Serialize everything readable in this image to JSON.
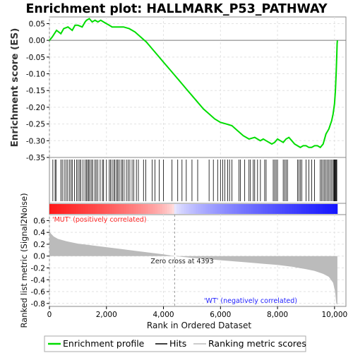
{
  "chart_data": {
    "type": "line",
    "title": "Enrichment plot: HALLMARK_P53_PATHWAY",
    "es_panel": {
      "ylabel": "Enrichment score (ES)",
      "ylim": [
        -0.35,
        0.07
      ],
      "yticks": [
        0.05,
        0.0,
        -0.05,
        -0.1,
        -0.15,
        -0.2,
        -0.25,
        -0.3,
        -0.35
      ],
      "ytick_labels": [
        "0.05",
        "0.00",
        "-0.05",
        "-0.10",
        "-0.15",
        "-0.20",
        "-0.25",
        "-0.30",
        "-0.35"
      ],
      "line_color": "#00dd00",
      "x": [
        0,
        100,
        250,
        400,
        500,
        650,
        800,
        900,
        1000,
        1150,
        1250,
        1300,
        1400,
        1500,
        1600,
        1700,
        1800,
        1900,
        2000,
        2100,
        2200,
        2300,
        2400,
        2600,
        2800,
        3000,
        3200,
        3400,
        3600,
        3800,
        4000,
        4200,
        4400,
        4600,
        4800,
        5000,
        5200,
        5400,
        5600,
        5800,
        6000,
        6200,
        6400,
        6600,
        6800,
        7000,
        7200,
        7400,
        7500,
        7600,
        7800,
        7900,
        8000,
        8100,
        8200,
        8300,
        8400,
        8500,
        8600,
        8700,
        8800,
        8900,
        9000,
        9100,
        9200,
        9300,
        9400,
        9500,
        9600,
        9700,
        9800,
        9900,
        9950,
        10000,
        10030,
        10060,
        10080,
        10090,
        10100
      ],
      "y": [
        0.0,
        0.01,
        0.03,
        0.02,
        0.035,
        0.04,
        0.03,
        0.045,
        0.045,
        0.04,
        0.055,
        0.06,
        0.065,
        0.055,
        0.06,
        0.055,
        0.06,
        0.055,
        0.05,
        0.045,
        0.04,
        0.04,
        0.04,
        0.04,
        0.035,
        0.025,
        0.01,
        -0.005,
        -0.025,
        -0.045,
        -0.065,
        -0.085,
        -0.105,
        -0.125,
        -0.145,
        -0.165,
        -0.185,
        -0.205,
        -0.22,
        -0.235,
        -0.245,
        -0.25,
        -0.255,
        -0.27,
        -0.285,
        -0.295,
        -0.29,
        -0.3,
        -0.295,
        -0.3,
        -0.31,
        -0.305,
        -0.295,
        -0.3,
        -0.305,
        -0.295,
        -0.29,
        -0.3,
        -0.31,
        -0.315,
        -0.32,
        -0.315,
        -0.315,
        -0.32,
        -0.32,
        -0.315,
        -0.315,
        -0.32,
        -0.31,
        -0.28,
        -0.265,
        -0.24,
        -0.22,
        -0.19,
        -0.15,
        -0.09,
        -0.04,
        -0.01,
        0.0
      ]
    },
    "hits": [
      120,
      200,
      230,
      400,
      450,
      520,
      580,
      640,
      700,
      760,
      800,
      880,
      950,
      1000,
      1060,
      1100,
      1180,
      1250,
      1300,
      1340,
      1380,
      1420,
      1480,
      1520,
      1600,
      1640,
      1700,
      1780,
      1860,
      1900,
      2000,
      2100,
      2140,
      2200,
      2260,
      2300,
      2360,
      2400,
      2450,
      2520,
      2560,
      2620,
      2700,
      2760,
      2820,
      2900,
      2960,
      3050,
      3120,
      3300,
      3380,
      3600,
      3700,
      3850,
      4000,
      4300,
      4500,
      4650,
      4800,
      5000,
      5200,
      5600,
      5750,
      5900,
      6000,
      6080,
      6150,
      6250,
      6320,
      6400,
      6650,
      6700,
      6850,
      7000,
      7050,
      7150,
      7200,
      7300,
      7400,
      7550,
      7600,
      7850,
      7900,
      7950,
      8000,
      8200,
      8250,
      8300,
      8350,
      8700,
      8750,
      8800,
      8850,
      9000,
      9100,
      9200,
      9300,
      9500,
      9550,
      9600,
      9650,
      9700,
      9750,
      9800,
      9850,
      9900,
      9950,
      9980,
      10000,
      10020,
      10040,
      10060,
      10080
    ],
    "metric_panel": {
      "ylabel": "Ranked list metric (Signal2Noise)",
      "ylim": [
        -0.85,
        0.7
      ],
      "yticks": [
        0.6,
        0.4,
        0.2,
        0.0,
        -0.2,
        -0.4,
        -0.6,
        -0.8
      ],
      "ytick_labels": [
        "0.6",
        "0.4",
        "0.2",
        "0.0",
        "-0.2",
        "-0.4",
        "-0.6",
        "-0.8"
      ],
      "x": [
        0,
        50,
        150,
        300,
        600,
        1000,
        1500,
        2000,
        2500,
        3000,
        3500,
        4000,
        4393,
        5000,
        5500,
        6000,
        6500,
        7000,
        7500,
        8000,
        8500,
        9000,
        9300,
        9600,
        9800,
        9950,
        10020,
        10060,
        10100
      ],
      "y": [
        0.42,
        0.38,
        0.33,
        0.29,
        0.25,
        0.21,
        0.18,
        0.15,
        0.12,
        0.09,
        0.06,
        0.03,
        0.0,
        -0.03,
        -0.05,
        -0.07,
        -0.09,
        -0.11,
        -0.13,
        -0.15,
        -0.18,
        -0.22,
        -0.25,
        -0.3,
        -0.35,
        -0.45,
        -0.6,
        -0.8,
        -0.82
      ],
      "pos_label": "'MUT' (positively correlated)",
      "neg_label": "'WT' (negatively correlated)",
      "zero_cross_label": "Zero cross at 4393",
      "zero_cross": 4393,
      "pos_color": "#ff2222",
      "neg_color": "#2222ff",
      "fill_color": "#bbbbbb"
    },
    "xlabel": "Rank in Ordered Dataset",
    "xlim": [
      0,
      10400
    ],
    "xticks": [
      0,
      2000,
      4000,
      6000,
      8000,
      10000
    ],
    "xtick_labels": [
      "0",
      "2,000",
      "4,000",
      "6,000",
      "8,000",
      "10,000"
    ],
    "n_genes": 10100,
    "legend": [
      {
        "label": "Enrichment profile",
        "color": "#00dd00"
      },
      {
        "label": "Hits",
        "color": "#000000"
      },
      {
        "label": "Ranking metric scores",
        "color": "#bbbbbb"
      }
    ]
  }
}
